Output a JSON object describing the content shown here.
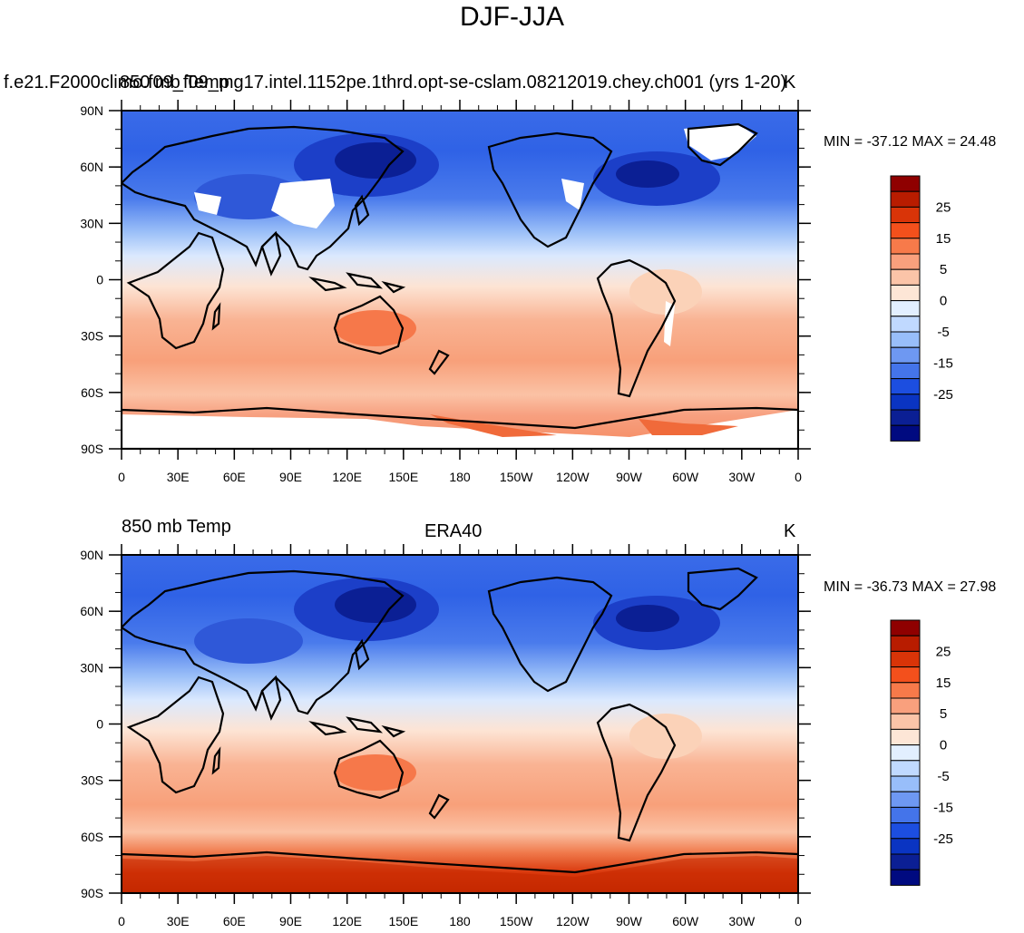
{
  "title": "DJF-JJA",
  "panels": [
    {
      "left_string": "850 mb Temp",
      "left_string_overprint": "f.e21.F2000climo.f09_f09_mg17.intel.1152pe.1thrd.opt-se-cslam.08212019.chey.ch001 (yrs 1-20)",
      "center_string": "",
      "right_string": "K",
      "minmax": "MIN = -37.12 MAX =  24.48",
      "has_missing_data": true
    },
    {
      "left_string": "850 mb Temp",
      "center_string": "ERA40",
      "right_string": "K",
      "minmax": "MIN = -36.73 MAX =  27.98",
      "has_missing_data": false
    }
  ],
  "axes": {
    "lat_labels": [
      "90N",
      "60N",
      "30N",
      "0",
      "30S",
      "60S",
      "90S"
    ],
    "lon_labels": [
      "0",
      "30E",
      "60E",
      "90E",
      "120E",
      "150E",
      "180",
      "150W",
      "120W",
      "90W",
      "60W",
      "30W",
      "0"
    ]
  },
  "colorbar": {
    "labels": [
      "25",
      "15",
      "5",
      "0",
      "-5",
      "-15",
      "-25"
    ],
    "colors": [
      "#8f0000",
      "#b81c00",
      "#d93408",
      "#f3501c",
      "#f77a4a",
      "#f9a07d",
      "#fbc4a8",
      "#fde6d6",
      "#e2efff",
      "#c0d9ff",
      "#98befa",
      "#6e98f2",
      "#4474ea",
      "#1c4ee0",
      "#0a34c2",
      "#0b1f94",
      "#000a80"
    ]
  },
  "colors": {
    "land_outline": "#000000",
    "missing": "#ffffff"
  }
}
